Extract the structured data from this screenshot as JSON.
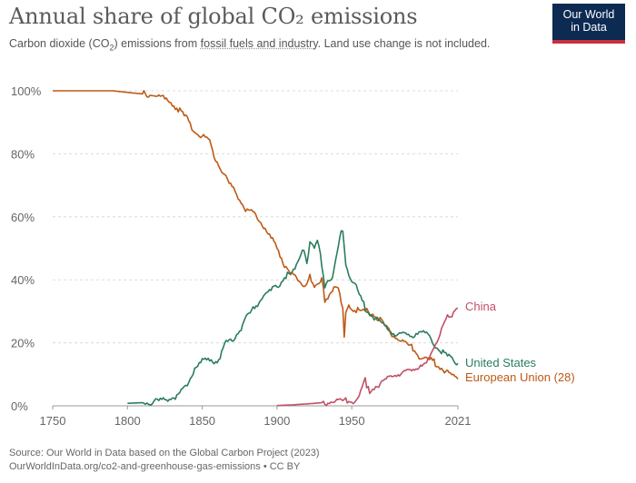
{
  "header": {
    "title": "Annual share of global CO₂ emissions",
    "subtitle_pre": "Carbon dioxide (CO",
    "subtitle_sub": "2",
    "subtitle_mid": ") emissions from ",
    "subtitle_link": "fossil fuels and industry",
    "subtitle_post": ". Land use change is not included."
  },
  "logo": {
    "line1": "Our World",
    "line2": "in Data"
  },
  "footer": {
    "source": "Source: Our World in Data based on the Global Carbon Project (2023)",
    "url": "OurWorldInData.org/co2-and-greenhouse-gas-emissions • CC BY"
  },
  "chart_data": {
    "type": "line",
    "title": "Annual share of global CO₂ emissions",
    "xlabel": "",
    "ylabel": "",
    "xlim": [
      1750,
      2021
    ],
    "ylim": [
      0,
      100
    ],
    "x_ticks": [
      1750,
      1800,
      1850,
      1900,
      1950,
      2021
    ],
    "y_ticks": [
      "0%",
      "20%",
      "40%",
      "60%",
      "80%",
      "100%"
    ],
    "grid": "horizontal dotted",
    "legend": "inline labels at line ends",
    "series": [
      {
        "name": "European Union (28)",
        "color": "#be5915",
        "points": [
          [
            1750,
            100
          ],
          [
            1790,
            100
          ],
          [
            1800,
            99.5
          ],
          [
            1820,
            98.5
          ],
          [
            1830,
            96
          ],
          [
            1840,
            91
          ],
          [
            1845,
            87
          ],
          [
            1850,
            85.5
          ],
          [
            1855,
            84
          ],
          [
            1858,
            79
          ],
          [
            1862,
            76
          ],
          [
            1867,
            71
          ],
          [
            1872,
            68
          ],
          [
            1878,
            63
          ],
          [
            1885,
            61
          ],
          [
            1890,
            58
          ],
          [
            1895,
            54
          ],
          [
            1900,
            50
          ],
          [
            1905,
            45
          ],
          [
            1910,
            42
          ],
          [
            1913,
            40
          ],
          [
            1916,
            38.5
          ],
          [
            1920,
            39
          ],
          [
            1922,
            42
          ],
          [
            1925,
            37
          ],
          [
            1928,
            38
          ],
          [
            1930,
            40
          ],
          [
            1932,
            33
          ],
          [
            1935,
            36
          ],
          [
            1938,
            38
          ],
          [
            1941,
            37
          ],
          [
            1944,
            30
          ],
          [
            1945,
            21
          ],
          [
            1946,
            29
          ],
          [
            1948,
            33
          ],
          [
            1950,
            31
          ],
          [
            1955,
            30
          ],
          [
            1960,
            30
          ],
          [
            1965,
            29
          ],
          [
            1970,
            26.5
          ],
          [
            1975,
            24
          ],
          [
            1980,
            21.5
          ],
          [
            1985,
            20
          ],
          [
            1990,
            18.5
          ],
          [
            1995,
            16
          ],
          [
            2000,
            15
          ],
          [
            2005,
            14
          ],
          [
            2010,
            12
          ],
          [
            2015,
            10
          ],
          [
            2021,
            8.5
          ]
        ]
      },
      {
        "name": "United States",
        "color": "#2a7d5c",
        "points": [
          [
            1800,
            0.8
          ],
          [
            1810,
            1
          ],
          [
            1820,
            1.3
          ],
          [
            1830,
            2.5
          ],
          [
            1835,
            4
          ],
          [
            1840,
            7
          ],
          [
            1845,
            12
          ],
          [
            1850,
            14
          ],
          [
            1855,
            15
          ],
          [
            1860,
            14
          ],
          [
            1863,
            17
          ],
          [
            1866,
            20
          ],
          [
            1870,
            21
          ],
          [
            1875,
            24
          ],
          [
            1880,
            28
          ],
          [
            1885,
            31
          ],
          [
            1890,
            35
          ],
          [
            1895,
            36
          ],
          [
            1900,
            38
          ],
          [
            1905,
            41
          ],
          [
            1910,
            42
          ],
          [
            1913,
            44
          ],
          [
            1916,
            49
          ],
          [
            1918,
            50
          ],
          [
            1920,
            46
          ],
          [
            1922,
            51
          ],
          [
            1925,
            50
          ],
          [
            1927,
            52
          ],
          [
            1929,
            49
          ],
          [
            1932,
            38
          ],
          [
            1934,
            40
          ],
          [
            1937,
            40
          ],
          [
            1939,
            45
          ],
          [
            1942,
            53
          ],
          [
            1944,
            56
          ],
          [
            1946,
            45
          ],
          [
            1950,
            40
          ],
          [
            1953,
            38
          ],
          [
            1956,
            34
          ],
          [
            1960,
            30.5
          ],
          [
            1965,
            28
          ],
          [
            1970,
            26
          ],
          [
            1975,
            24
          ],
          [
            1980,
            22.5
          ],
          [
            1985,
            22.5
          ],
          [
            1990,
            22.5
          ],
          [
            1995,
            23.5
          ],
          [
            2000,
            23
          ],
          [
            2005,
            20
          ],
          [
            2010,
            17
          ],
          [
            2015,
            15.5
          ],
          [
            2021,
            13.5
          ]
        ]
      },
      {
        "name": "China",
        "color": "#c15065",
        "points": [
          [
            1900,
            0.1
          ],
          [
            1910,
            0.3
          ],
          [
            1920,
            0.6
          ],
          [
            1930,
            1
          ],
          [
            1940,
            1.5
          ],
          [
            1950,
            1.5
          ],
          [
            1955,
            3
          ],
          [
            1958,
            7.5
          ],
          [
            1959,
            8
          ],
          [
            1960,
            5.5
          ],
          [
            1962,
            5
          ],
          [
            1965,
            6
          ],
          [
            1970,
            7
          ],
          [
            1975,
            9
          ],
          [
            1980,
            10
          ],
          [
            1985,
            10.5
          ],
          [
            1990,
            11
          ],
          [
            1995,
            13
          ],
          [
            2000,
            13.5
          ],
          [
            2005,
            18
          ],
          [
            2010,
            25
          ],
          [
            2013,
            28
          ],
          [
            2016,
            27.5
          ],
          [
            2021,
            31
          ]
        ]
      }
    ]
  }
}
